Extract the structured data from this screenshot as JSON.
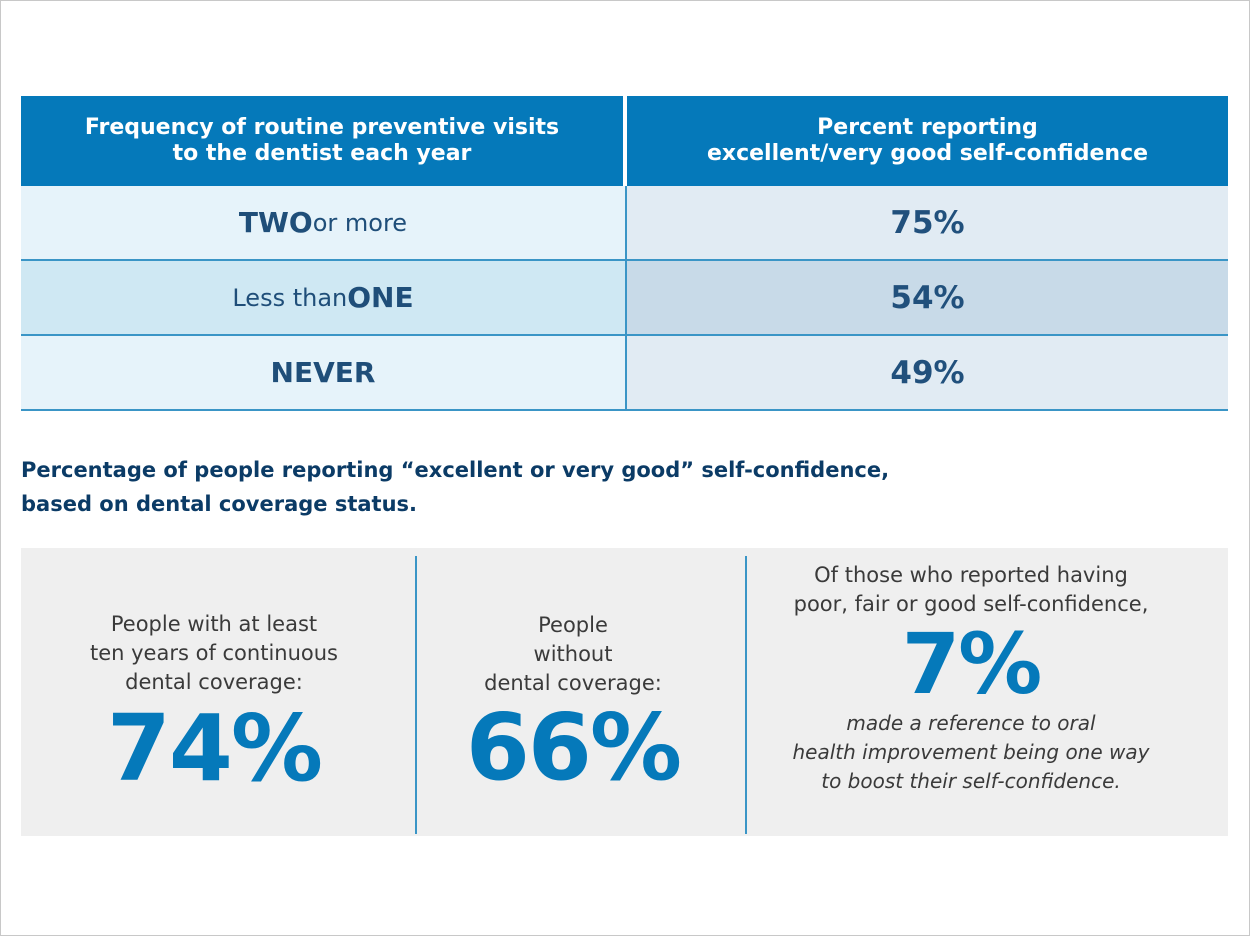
{
  "chart_data": [
    {
      "type": "table",
      "columns": [
        "Frequency of routine preventive visits\nto the dentist each year",
        "Percent reporting\nexcellent/very good self-confidence"
      ],
      "rows": [
        {
          "label_big": "TWO",
          "label_small": " or more",
          "value": "75%"
        },
        {
          "label_small": "Less than ",
          "label_big": "ONE",
          "value": "54%"
        },
        {
          "label_big": "NEVER",
          "value": "49%"
        }
      ],
      "values": [
        75,
        54,
        49
      ]
    }
  ],
  "subtitle": "Percentage of people reporting “excellent or very good” self-confidence,\nbased on dental coverage status.",
  "stats": [
    {
      "caption": "People with at least\nten years of continuous\ndental coverage:",
      "value": "74%"
    },
    {
      "caption": "People\nwithout\ndental coverage:",
      "value": "66%"
    },
    {
      "caption": "Of those who reported having\npoor, fair or good self-confidence,",
      "value": "7%",
      "note": "made a reference to oral\nhealth improvement being one way\nto boost their self-confidence."
    }
  ],
  "colors": {
    "header_blue": "#0579ba",
    "text_dark_blue": "#1f4e79",
    "stat_blue": "#0579ba",
    "panel_gray": "#efefef"
  }
}
